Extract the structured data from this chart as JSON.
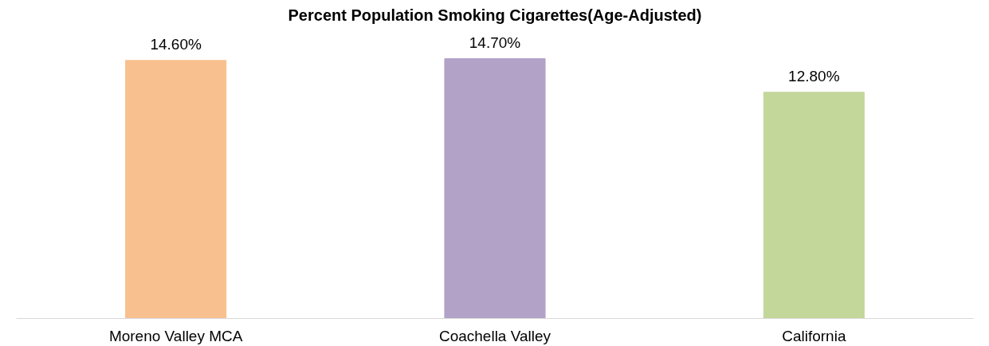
{
  "chart_data": {
    "type": "bar",
    "title": "Percent Population Smoking Cigarettes(Age-Adjusted)",
    "categories": [
      "Moreno Valley MCA",
      "Coachella Valley",
      "California"
    ],
    "values": [
      14.6,
      14.7,
      12.8
    ],
    "colors": [
      "#f8c08f",
      "#b3a2c7",
      "#c4d79b"
    ],
    "value_labels": [
      "14.60%",
      "14.70%",
      "12.80%"
    ],
    "tick_labels": "x",
    "grid": false
  }
}
